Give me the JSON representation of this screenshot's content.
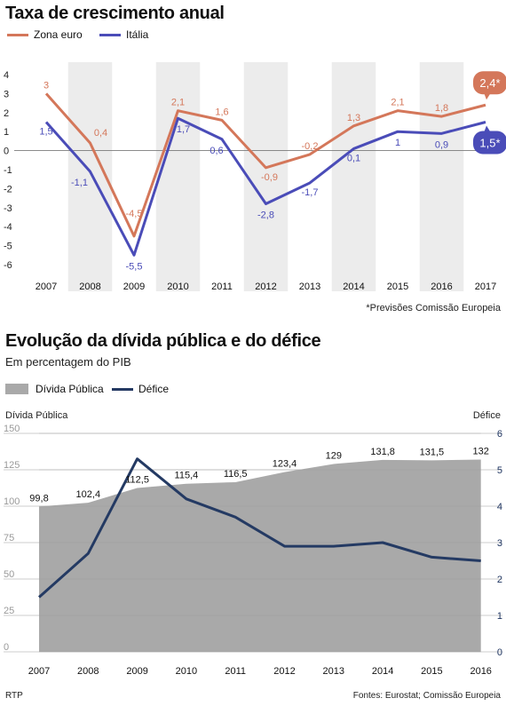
{
  "charts": {
    "chart1": {
      "title": "Taxa de crescimento anual",
      "note": "*Previsões Comissão Europeia",
      "legend": [
        "Zona euro",
        "Itália"
      ]
    },
    "chart2": {
      "title": "Evolução da dívida pública e do défice",
      "subtitle": "Em percentagem do PIB",
      "legend": [
        "Dívida Pública",
        "Défice"
      ],
      "left_axis_label": "Dívida Pública",
      "right_axis_label": "Défice"
    }
  },
  "footer": {
    "left": "RTP",
    "right": "Fontes: Eurostat; Comissão Europeia"
  },
  "colors": {
    "zona_euro": "#d4775a",
    "italia": "#4a4cb8",
    "divida_area": "#a9a9a9",
    "defice_line": "#243a63",
    "stripe": "#ececec"
  },
  "chart_data": [
    {
      "type": "line",
      "title": "Taxa de crescimento anual",
      "categories": [
        "2007",
        "2008",
        "2009",
        "2010",
        "2011",
        "2012",
        "2013",
        "2014",
        "2015",
        "2016",
        "2017"
      ],
      "series": [
        {
          "name": "Zona euro",
          "values": [
            3,
            0.4,
            -4.5,
            2.1,
            1.6,
            -0.9,
            -0.2,
            1.3,
            2.1,
            1.8,
            2.4
          ]
        },
        {
          "name": "Itália",
          "values": [
            1.5,
            -1.1,
            -5.5,
            1.7,
            0.6,
            -2.8,
            -1.7,
            0.1,
            1,
            0.9,
            1.5
          ]
        }
      ],
      "labels": {
        "Zona euro": [
          "3",
          "0,4",
          "-4,5",
          "2,1",
          "1,6",
          "-0,9",
          "-0,2",
          "1,3",
          "2,1",
          "1,8",
          "2,4*"
        ],
        "Itália": [
          "1,5",
          "-1,1",
          "-5,5",
          "1,7",
          "0,6",
          "-2,8",
          "-1,7",
          "0,1",
          "1",
          "0,9",
          "1,5*"
        ]
      },
      "yticks": [
        "4",
        "3",
        "2",
        "1",
        "0",
        "-1",
        "-2",
        "-3",
        "-4",
        "-5",
        "-6"
      ],
      "ylim": [
        -6,
        4
      ],
      "grid": false,
      "legend_position": "top-left"
    },
    {
      "type": "area",
      "title": "Evolução da dívida pública e do défice",
      "subtitle": "Em percentagem do PIB",
      "categories": [
        "2007",
        "2008",
        "2009",
        "2010",
        "2011",
        "2012",
        "2013",
        "2014",
        "2015",
        "2016"
      ],
      "series": [
        {
          "name": "Dívida Pública",
          "type": "area",
          "axis": "left",
          "values": [
            99.8,
            102.4,
            112.5,
            115.4,
            116.5,
            123.4,
            129,
            131.8,
            131.5,
            132
          ],
          "labels": [
            "99,8",
            "102,4",
            "112,5",
            "115,4",
            "116,5",
            "123,4",
            "129",
            "131,8",
            "131,5",
            "132"
          ]
        },
        {
          "name": "Défice",
          "type": "line",
          "axis": "right",
          "values": [
            1.5,
            2.7,
            5.3,
            4.2,
            3.7,
            2.9,
            2.9,
            3.0,
            2.6,
            2.5
          ]
        }
      ],
      "left_axis": {
        "label": "Dívida Pública",
        "ticks": [
          "150",
          "125",
          "100",
          "75",
          "50",
          "25",
          "0"
        ],
        "range": [
          0,
          150
        ]
      },
      "right_axis": {
        "label": "Défice",
        "ticks": [
          "6",
          "5",
          "4",
          "3",
          "2",
          "1",
          "0"
        ],
        "range": [
          0,
          6
        ]
      },
      "grid": true,
      "legend_position": "top-left"
    }
  ]
}
